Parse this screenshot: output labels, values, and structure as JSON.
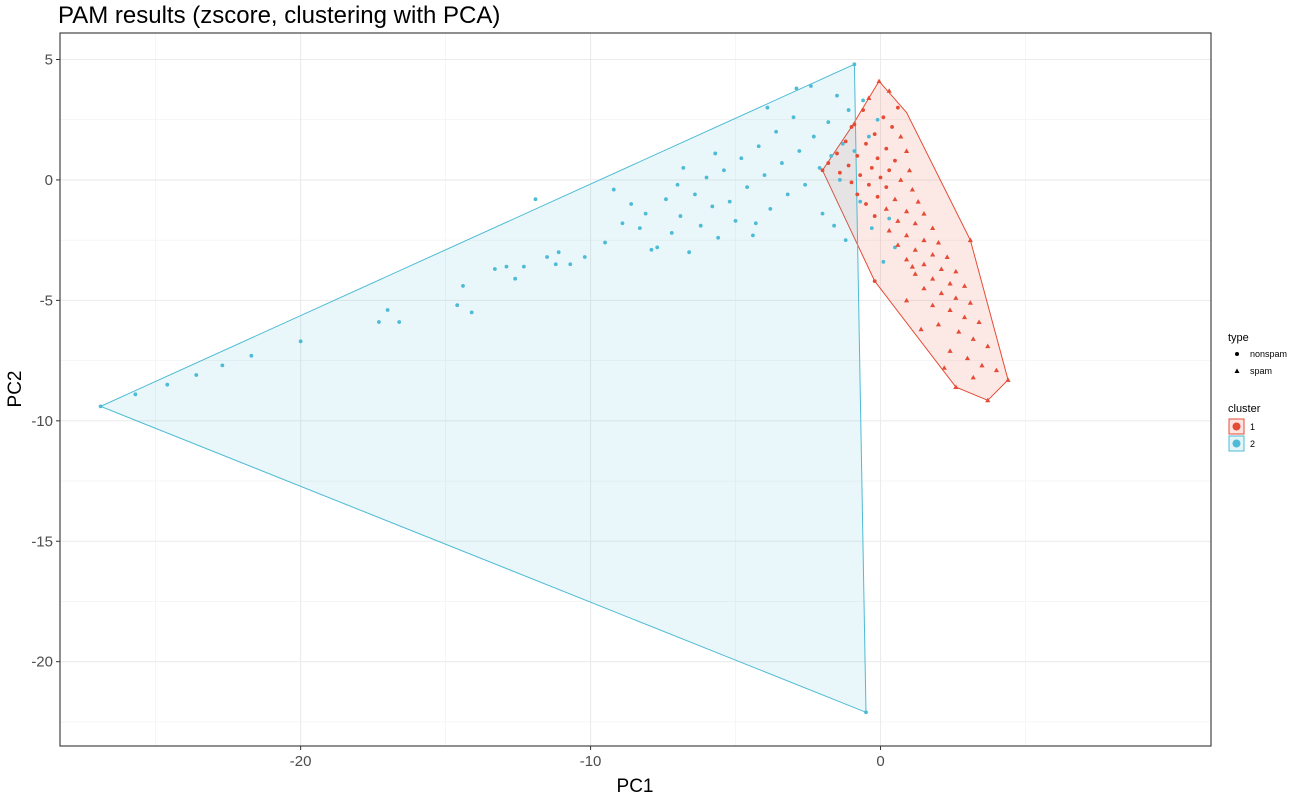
{
  "chart_data": {
    "type": "scatter",
    "title": "PAM results (zscore, clustering with PCA)",
    "xlabel": "PC1",
    "ylabel": "PC2",
    "xlim": [
      -28.3,
      11.4
    ],
    "ylim": [
      -23.5,
      6.1
    ],
    "x_ticks": [
      -20,
      -10,
      0
    ],
    "y_ticks": [
      5,
      0,
      -5,
      -10,
      -15,
      -20
    ],
    "x_tick_labels": [
      "-20",
      "-10",
      "0"
    ],
    "y_tick_labels": [
      "5",
      "0",
      "-5",
      "-10",
      "-15",
      "-20"
    ],
    "grid": true,
    "legend_position": "right",
    "colors": {
      "cluster_1": "#E64B35",
      "cluster_2": "#4DBBD5"
    },
    "legends": [
      {
        "title": "type",
        "items": [
          {
            "label": "nonspam",
            "shape": "circle"
          },
          {
            "label": "spam",
            "shape": "triangle"
          }
        ]
      },
      {
        "title": "cluster",
        "items": [
          {
            "label": "1",
            "color": "#E64B35"
          },
          {
            "label": "2",
            "color": "#4DBBD5"
          }
        ]
      }
    ],
    "series": [
      {
        "name": "1",
        "color": "#E64B35",
        "hull": [
          [
            -0.05,
            4.1
          ],
          [
            0.9,
            2.8
          ],
          [
            3.1,
            -2.5
          ],
          [
            4.4,
            -8.3
          ],
          [
            3.7,
            -9.15
          ],
          [
            2.6,
            -8.6
          ],
          [
            -0.2,
            -4.2
          ],
          [
            -2.0,
            0.4
          ],
          [
            -1.0,
            2.2
          ]
        ],
        "points": [
          {
            "x": -0.05,
            "y": 4.1,
            "type": "spam"
          },
          {
            "x": 0.3,
            "y": 3.7,
            "type": "spam"
          },
          {
            "x": -0.4,
            "y": 3.4,
            "type": "spam"
          },
          {
            "x": 0.6,
            "y": 3.0,
            "type": "nonspam"
          },
          {
            "x": -0.6,
            "y": 2.9,
            "type": "nonspam"
          },
          {
            "x": 0.1,
            "y": 2.6,
            "type": "nonspam"
          },
          {
            "x": -0.9,
            "y": 2.3,
            "type": "nonspam"
          },
          {
            "x": 0.4,
            "y": 2.2,
            "type": "nonspam"
          },
          {
            "x": -0.2,
            "y": 1.9,
            "type": "nonspam"
          },
          {
            "x": 0.7,
            "y": 1.8,
            "type": "spam"
          },
          {
            "x": -1.2,
            "y": 1.6,
            "type": "nonspam"
          },
          {
            "x": -0.5,
            "y": 1.5,
            "type": "nonspam"
          },
          {
            "x": 0.2,
            "y": 1.3,
            "type": "nonspam"
          },
          {
            "x": 0.9,
            "y": 1.2,
            "type": "spam"
          },
          {
            "x": -1.5,
            "y": 1.1,
            "type": "nonspam"
          },
          {
            "x": -0.8,
            "y": 1.0,
            "type": "nonspam"
          },
          {
            "x": -0.1,
            "y": 0.9,
            "type": "nonspam"
          },
          {
            "x": 0.5,
            "y": 0.8,
            "type": "nonspam"
          },
          {
            "x": -1.8,
            "y": 0.7,
            "type": "nonspam"
          },
          {
            "x": -1.1,
            "y": 0.6,
            "type": "nonspam"
          },
          {
            "x": -0.3,
            "y": 0.5,
            "type": "nonspam"
          },
          {
            "x": 0.3,
            "y": 0.4,
            "type": "nonspam"
          },
          {
            "x": 1.0,
            "y": 0.4,
            "type": "spam"
          },
          {
            "x": -1.4,
            "y": 0.3,
            "type": "nonspam"
          },
          {
            "x": -0.7,
            "y": 0.2,
            "type": "nonspam"
          },
          {
            "x": 0.0,
            "y": 0.1,
            "type": "nonspam"
          },
          {
            "x": 0.7,
            "y": 0.0,
            "type": "spam"
          },
          {
            "x": -1.0,
            "y": -0.1,
            "type": "nonspam"
          },
          {
            "x": -0.4,
            "y": -0.2,
            "type": "nonspam"
          },
          {
            "x": 0.2,
            "y": -0.3,
            "type": "nonspam"
          },
          {
            "x": 1.1,
            "y": -0.4,
            "type": "spam"
          },
          {
            "x": -0.8,
            "y": -0.6,
            "type": "nonspam"
          },
          {
            "x": -0.1,
            "y": -0.7,
            "type": "nonspam"
          },
          {
            "x": 0.5,
            "y": -0.8,
            "type": "spam"
          },
          {
            "x": 1.3,
            "y": -0.9,
            "type": "spam"
          },
          {
            "x": -0.5,
            "y": -1.0,
            "type": "nonspam"
          },
          {
            "x": 0.2,
            "y": -1.2,
            "type": "spam"
          },
          {
            "x": 0.9,
            "y": -1.3,
            "type": "spam"
          },
          {
            "x": 1.5,
            "y": -1.4,
            "type": "spam"
          },
          {
            "x": -0.2,
            "y": -1.5,
            "type": "nonspam"
          },
          {
            "x": 0.6,
            "y": -1.7,
            "type": "spam"
          },
          {
            "x": 1.2,
            "y": -1.8,
            "type": "spam"
          },
          {
            "x": 1.8,
            "y": -2.0,
            "type": "spam"
          },
          {
            "x": 0.3,
            "y": -2.1,
            "type": "spam"
          },
          {
            "x": 0.9,
            "y": -2.3,
            "type": "spam"
          },
          {
            "x": 1.5,
            "y": -2.5,
            "type": "spam"
          },
          {
            "x": 2.0,
            "y": -2.6,
            "type": "spam"
          },
          {
            "x": 0.6,
            "y": -2.7,
            "type": "spam"
          },
          {
            "x": 1.2,
            "y": -2.9,
            "type": "spam"
          },
          {
            "x": 1.8,
            "y": -3.1,
            "type": "spam"
          },
          {
            "x": 2.3,
            "y": -3.2,
            "type": "spam"
          },
          {
            "x": 0.9,
            "y": -3.3,
            "type": "spam"
          },
          {
            "x": 1.5,
            "y": -3.5,
            "type": "spam"
          },
          {
            "x": 2.1,
            "y": -3.7,
            "type": "spam"
          },
          {
            "x": 2.6,
            "y": -3.8,
            "type": "spam"
          },
          {
            "x": 1.2,
            "y": -3.9,
            "type": "spam"
          },
          {
            "x": 1.8,
            "y": -4.1,
            "type": "spam"
          },
          {
            "x": 2.4,
            "y": -4.3,
            "type": "spam"
          },
          {
            "x": 2.9,
            "y": -4.4,
            "type": "spam"
          },
          {
            "x": 1.5,
            "y": -4.5,
            "type": "spam"
          },
          {
            "x": 2.1,
            "y": -4.7,
            "type": "spam"
          },
          {
            "x": 2.6,
            "y": -4.9,
            "type": "spam"
          },
          {
            "x": 3.1,
            "y": -5.1,
            "type": "spam"
          },
          {
            "x": 1.8,
            "y": -5.2,
            "type": "spam"
          },
          {
            "x": 2.4,
            "y": -5.4,
            "type": "spam"
          },
          {
            "x": 2.9,
            "y": -5.7,
            "type": "spam"
          },
          {
            "x": 3.4,
            "y": -5.9,
            "type": "spam"
          },
          {
            "x": 2.0,
            "y": -6.0,
            "type": "spam"
          },
          {
            "x": 2.7,
            "y": -6.3,
            "type": "spam"
          },
          {
            "x": 3.2,
            "y": -6.6,
            "type": "spam"
          },
          {
            "x": 3.7,
            "y": -6.9,
            "type": "spam"
          },
          {
            "x": 2.4,
            "y": -7.1,
            "type": "spam"
          },
          {
            "x": 3.0,
            "y": -7.4,
            "type": "spam"
          },
          {
            "x": 3.5,
            "y": -7.7,
            "type": "spam"
          },
          {
            "x": 4.0,
            "y": -7.9,
            "type": "spam"
          },
          {
            "x": 3.2,
            "y": -8.2,
            "type": "spam"
          },
          {
            "x": 2.6,
            "y": -8.6,
            "type": "spam"
          },
          {
            "x": 3.7,
            "y": -9.15,
            "type": "spam"
          },
          {
            "x": 4.4,
            "y": -8.3,
            "type": "spam"
          },
          {
            "x": 3.1,
            "y": -2.5,
            "type": "spam"
          },
          {
            "x": -0.2,
            "y": -4.2,
            "type": "nonspam"
          },
          {
            "x": -2.0,
            "y": 0.4,
            "type": "nonspam"
          },
          {
            "x": -1.0,
            "y": 2.2,
            "type": "nonspam"
          },
          {
            "x": 1.4,
            "y": -6.2,
            "type": "spam"
          },
          {
            "x": 0.9,
            "y": -5.0,
            "type": "spam"
          },
          {
            "x": 2.2,
            "y": -7.8,
            "type": "spam"
          },
          {
            "x": 1.1,
            "y": -3.6,
            "type": "spam"
          }
        ]
      },
      {
        "name": "2",
        "color": "#4DBBD5",
        "hull": [
          [
            -0.9,
            4.8
          ],
          [
            -0.5,
            -22.1
          ],
          [
            -26.9,
            -9.4
          ]
        ],
        "points": [
          {
            "x": -0.9,
            "y": 4.8,
            "type": "nonspam"
          },
          {
            "x": -0.5,
            "y": -22.1,
            "type": "nonspam"
          },
          {
            "x": -26.9,
            "y": -9.4,
            "type": "nonspam"
          },
          {
            "x": -25.7,
            "y": -8.9,
            "type": "nonspam"
          },
          {
            "x": -24.6,
            "y": -8.5,
            "type": "nonspam"
          },
          {
            "x": -23.6,
            "y": -8.1,
            "type": "nonspam"
          },
          {
            "x": -22.7,
            "y": -7.7,
            "type": "nonspam"
          },
          {
            "x": -21.7,
            "y": -7.3,
            "type": "nonspam"
          },
          {
            "x": -20.0,
            "y": -6.7,
            "type": "nonspam"
          },
          {
            "x": -17.3,
            "y": -5.9,
            "type": "nonspam"
          },
          {
            "x": -17.0,
            "y": -5.4,
            "type": "nonspam"
          },
          {
            "x": -16.6,
            "y": -5.9,
            "type": "nonspam"
          },
          {
            "x": -14.6,
            "y": -5.2,
            "type": "nonspam"
          },
          {
            "x": -14.4,
            "y": -4.4,
            "type": "nonspam"
          },
          {
            "x": -14.1,
            "y": -5.5,
            "type": "nonspam"
          },
          {
            "x": -13.3,
            "y": -3.7,
            "type": "nonspam"
          },
          {
            "x": -12.9,
            "y": -3.6,
            "type": "nonspam"
          },
          {
            "x": -12.6,
            "y": -4.1,
            "type": "nonspam"
          },
          {
            "x": -12.3,
            "y": -3.6,
            "type": "nonspam"
          },
          {
            "x": -11.9,
            "y": -0.8,
            "type": "nonspam"
          },
          {
            "x": -11.5,
            "y": -3.2,
            "type": "nonspam"
          },
          {
            "x": -11.2,
            "y": -3.5,
            "type": "nonspam"
          },
          {
            "x": -11.1,
            "y": -3.0,
            "type": "nonspam"
          },
          {
            "x": -10.7,
            "y": -3.5,
            "type": "nonspam"
          },
          {
            "x": -10.2,
            "y": -3.2,
            "type": "nonspam"
          },
          {
            "x": -9.5,
            "y": -2.6,
            "type": "nonspam"
          },
          {
            "x": -9.2,
            "y": -0.4,
            "type": "nonspam"
          },
          {
            "x": -8.6,
            "y": -1.0,
            "type": "nonspam"
          },
          {
            "x": -8.3,
            "y": -2.0,
            "type": "nonspam"
          },
          {
            "x": -8.1,
            "y": -1.4,
            "type": "nonspam"
          },
          {
            "x": -7.9,
            "y": -2.9,
            "type": "nonspam"
          },
          {
            "x": -7.7,
            "y": -2.8,
            "type": "nonspam"
          },
          {
            "x": -7.4,
            "y": -0.8,
            "type": "nonspam"
          },
          {
            "x": -7.2,
            "y": -2.2,
            "type": "nonspam"
          },
          {
            "x": -6.9,
            "y": -1.5,
            "type": "nonspam"
          },
          {
            "x": -6.6,
            "y": -3.0,
            "type": "nonspam"
          },
          {
            "x": -6.4,
            "y": -0.6,
            "type": "nonspam"
          },
          {
            "x": -6.2,
            "y": -1.9,
            "type": "nonspam"
          },
          {
            "x": -6.0,
            "y": 0.1,
            "type": "nonspam"
          },
          {
            "x": -5.8,
            "y": -1.1,
            "type": "nonspam"
          },
          {
            "x": -5.6,
            "y": -2.4,
            "type": "nonspam"
          },
          {
            "x": -5.4,
            "y": 0.4,
            "type": "nonspam"
          },
          {
            "x": -5.2,
            "y": -0.9,
            "type": "nonspam"
          },
          {
            "x": -5.0,
            "y": -1.7,
            "type": "nonspam"
          },
          {
            "x": -4.8,
            "y": 0.9,
            "type": "nonspam"
          },
          {
            "x": -4.6,
            "y": -0.3,
            "type": "nonspam"
          },
          {
            "x": -4.4,
            "y": -2.3,
            "type": "nonspam"
          },
          {
            "x": -4.2,
            "y": 1.4,
            "type": "nonspam"
          },
          {
            "x": -4.0,
            "y": 0.2,
            "type": "nonspam"
          },
          {
            "x": -3.8,
            "y": -1.2,
            "type": "nonspam"
          },
          {
            "x": -3.6,
            "y": 2.0,
            "type": "nonspam"
          },
          {
            "x": -3.4,
            "y": 0.7,
            "type": "nonspam"
          },
          {
            "x": -3.2,
            "y": -0.6,
            "type": "nonspam"
          },
          {
            "x": -3.0,
            "y": 2.6,
            "type": "nonspam"
          },
          {
            "x": -2.8,
            "y": 1.2,
            "type": "nonspam"
          },
          {
            "x": -2.6,
            "y": -0.2,
            "type": "nonspam"
          },
          {
            "x": -2.4,
            "y": 3.9,
            "type": "nonspam"
          },
          {
            "x": -2.3,
            "y": 1.8,
            "type": "nonspam"
          },
          {
            "x": -2.1,
            "y": 0.5,
            "type": "nonspam"
          },
          {
            "x": -2.0,
            "y": -1.4,
            "type": "nonspam"
          },
          {
            "x": -1.8,
            "y": 2.4,
            "type": "nonspam"
          },
          {
            "x": -1.7,
            "y": 1.0,
            "type": "nonspam"
          },
          {
            "x": -1.5,
            "y": 3.5,
            "type": "nonspam"
          },
          {
            "x": -1.4,
            "y": 0.0,
            "type": "nonspam"
          },
          {
            "x": -1.3,
            "y": 1.5,
            "type": "nonspam"
          },
          {
            "x": -1.2,
            "y": -2.5,
            "type": "nonspam"
          },
          {
            "x": -1.1,
            "y": 2.9,
            "type": "nonspam"
          },
          {
            "x": -0.9,
            "y": 1.2,
            "type": "nonspam"
          },
          {
            "x": -0.7,
            "y": -0.9,
            "type": "nonspam"
          },
          {
            "x": -0.6,
            "y": 3.3,
            "type": "nonspam"
          },
          {
            "x": -0.4,
            "y": 1.8,
            "type": "nonspam"
          },
          {
            "x": -0.3,
            "y": -2.0,
            "type": "nonspam"
          },
          {
            "x": -0.1,
            "y": 2.5,
            "type": "nonspam"
          },
          {
            "x": 0.1,
            "y": -3.4,
            "type": "nonspam"
          },
          {
            "x": 0.3,
            "y": -1.6,
            "type": "nonspam"
          },
          {
            "x": 0.5,
            "y": -2.8,
            "type": "nonspam"
          },
          {
            "x": -8.9,
            "y": -1.8,
            "type": "nonspam"
          },
          {
            "x": -5.7,
            "y": 1.1,
            "type": "nonspam"
          },
          {
            "x": -3.9,
            "y": 3.0,
            "type": "nonspam"
          },
          {
            "x": -2.9,
            "y": 3.8,
            "type": "nonspam"
          },
          {
            "x": -6.8,
            "y": 0.5,
            "type": "nonspam"
          },
          {
            "x": -4.3,
            "y": -1.8,
            "type": "nonspam"
          },
          {
            "x": -1.6,
            "y": -1.9,
            "type": "nonspam"
          },
          {
            "x": -7.0,
            "y": -0.2,
            "type": "nonspam"
          }
        ]
      }
    ]
  }
}
